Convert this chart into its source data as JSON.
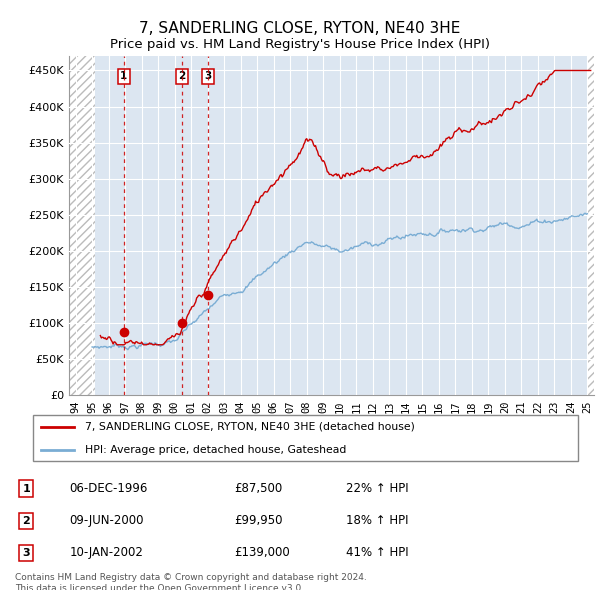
{
  "title": "7, SANDERLING CLOSE, RYTON, NE40 3HE",
  "subtitle": "Price paid vs. HM Land Registry's House Price Index (HPI)",
  "ylabel_ticks": [
    "£0",
    "£50K",
    "£100K",
    "£150K",
    "£200K",
    "£250K",
    "£300K",
    "£350K",
    "£400K",
    "£450K"
  ],
  "ytick_values": [
    0,
    50000,
    100000,
    150000,
    200000,
    250000,
    300000,
    350000,
    400000,
    450000
  ],
  "xlim_start": 1993.6,
  "xlim_end": 2025.4,
  "ylim": [
    0,
    470000
  ],
  "hatch_end_year": 1995.2,
  "hatch_start_year": 1993.6,
  "sale_points": [
    {
      "year": 1996.92,
      "price": 87500,
      "label": "1"
    },
    {
      "year": 2000.44,
      "price": 99950,
      "label": "2"
    },
    {
      "year": 2002.03,
      "price": 139000,
      "label": "3"
    }
  ],
  "legend_line1": "7, SANDERLING CLOSE, RYTON, NE40 3HE (detached house)",
  "legend_line2": "HPI: Average price, detached house, Gateshead",
  "table_data": [
    {
      "num": "1",
      "date": "06-DEC-1996",
      "price": "£87,500",
      "change": "22% ↑ HPI"
    },
    {
      "num": "2",
      "date": "09-JUN-2000",
      "price": "£99,950",
      "change": "18% ↑ HPI"
    },
    {
      "num": "3",
      "date": "10-JAN-2002",
      "price": "£139,000",
      "change": "41% ↑ HPI"
    }
  ],
  "footer": "Contains HM Land Registry data © Crown copyright and database right 2024.\nThis data is licensed under the Open Government Licence v3.0.",
  "red_line_color": "#cc0000",
  "blue_line_color": "#7aadd4",
  "background_color": "#dce6f1",
  "grid_color": "#ffffff",
  "title_fontsize": 11,
  "subtitle_fontsize": 9.5,
  "xtick_labels": [
    "94",
    "95",
    "96",
    "97",
    "98",
    "99",
    "00",
    "01",
    "02",
    "03",
    "04",
    "05",
    "06",
    "07",
    "08",
    "09",
    "10",
    "11",
    "12",
    "13",
    "14",
    "15",
    "16",
    "17",
    "18",
    "19",
    "20",
    "21",
    "22",
    "23",
    "24",
    "25"
  ]
}
